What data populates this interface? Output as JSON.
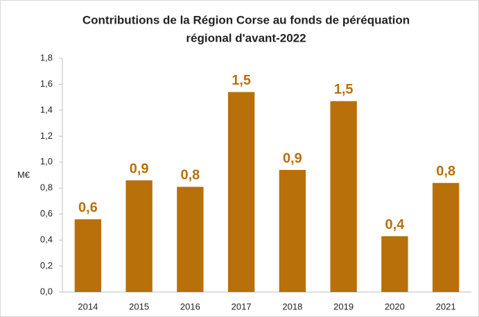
{
  "chart_data": {
    "type": "bar",
    "title": [
      "Contributions de la Région Corse au fonds de péréquation",
      "régional d'avant-2022"
    ],
    "y_label": "M€",
    "categories": [
      "2014",
      "2015",
      "2016",
      "2017",
      "2018",
      "2019",
      "2020",
      "2021"
    ],
    "values": [
      0.56,
      0.86,
      0.81,
      1.54,
      0.94,
      1.47,
      0.43,
      0.84
    ],
    "value_labels": [
      "0,6",
      "0,9",
      "0,8",
      "1,5",
      "0,9",
      "1,5",
      "0,4",
      "0,8"
    ],
    "color": "#b8700a",
    "ylim": [
      0,
      1.8
    ],
    "yticks": [
      {
        "value": 0,
        "label": "0,0"
      },
      {
        "value": 0.2,
        "label": "0,2"
      },
      {
        "value": 0.4,
        "label": "0,4"
      },
      {
        "value": 0.6,
        "label": "0,6"
      },
      {
        "value": 0.8,
        "label": "0,8"
      },
      {
        "value": 1.0,
        "label": "1,0"
      },
      {
        "value": 1.2,
        "label": "1,2"
      },
      {
        "value": 1.4,
        "label": "1,4"
      },
      {
        "value": 1.6,
        "label": "1,6"
      },
      {
        "value": 1.8,
        "label": "1,8"
      }
    ],
    "grid": false
  }
}
